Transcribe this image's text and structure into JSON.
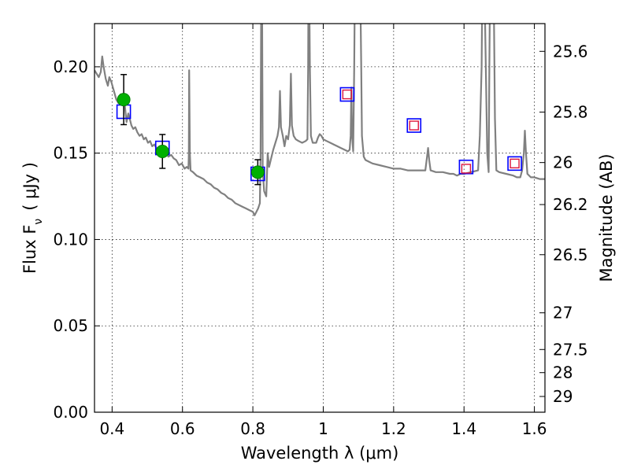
{
  "chart_data": {
    "type": "scatter",
    "xlabel": "Wavelength  λ (μm)",
    "ylabel": "Flux  F",
    "ylabel_sub": "ν",
    "ylabel_unit": "( μJy )",
    "y2label": "Magnitude (AB)",
    "xlim": [
      0.35,
      1.63
    ],
    "ylim": [
      0.0,
      0.225
    ],
    "grid": true,
    "x_ticks": [
      {
        "v": 0.4,
        "label": "0.4"
      },
      {
        "v": 0.6,
        "label": "0.6"
      },
      {
        "v": 0.8,
        "label": "0.8"
      },
      {
        "v": 1.0,
        "label": "1"
      },
      {
        "v": 1.2,
        "label": "1.2"
      },
      {
        "v": 1.4,
        "label": "1.4"
      },
      {
        "v": 1.6,
        "label": "1.6"
      }
    ],
    "y_ticks": [
      {
        "v": 0.0,
        "label": "0.00"
      },
      {
        "v": 0.05,
        "label": "0.05"
      },
      {
        "v": 0.1,
        "label": "0.10"
      },
      {
        "v": 0.15,
        "label": "0.15"
      },
      {
        "v": 0.2,
        "label": "0.20"
      }
    ],
    "mag_ticks": [
      {
        "v": 25.6,
        "label": "25.6"
      },
      {
        "v": 25.8,
        "label": "25.8"
      },
      {
        "v": 26,
        "label": "26"
      },
      {
        "v": 26.2,
        "label": "26.2"
      },
      {
        "v": 26.5,
        "label": "26.5"
      },
      {
        "v": 27,
        "label": "27"
      },
      {
        "v": 27.5,
        "label": "27.5"
      },
      {
        "v": 28,
        "label": "28"
      },
      {
        "v": 29,
        "label": "29"
      }
    ],
    "model_spectrum": {
      "color": "#808080",
      "points": [
        [
          0.35,
          0.198
        ],
        [
          0.356,
          0.196
        ],
        [
          0.362,
          0.194
        ],
        [
          0.368,
          0.197
        ],
        [
          0.372,
          0.206
        ],
        [
          0.376,
          0.2
        ],
        [
          0.382,
          0.193
        ],
        [
          0.388,
          0.189
        ],
        [
          0.392,
          0.194
        ],
        [
          0.398,
          0.191
        ],
        [
          0.405,
          0.186
        ],
        [
          0.412,
          0.181
        ],
        [
          0.418,
          0.179
        ],
        [
          0.424,
          0.184
        ],
        [
          0.428,
          0.18
        ],
        [
          0.432,
          0.183
        ],
        [
          0.436,
          0.178
        ],
        [
          0.441,
          0.168
        ],
        [
          0.446,
          0.173
        ],
        [
          0.45,
          0.17
        ],
        [
          0.455,
          0.166
        ],
        [
          0.46,
          0.164
        ],
        [
          0.466,
          0.165
        ],
        [
          0.472,
          0.162
        ],
        [
          0.478,
          0.16
        ],
        [
          0.484,
          0.161
        ],
        [
          0.49,
          0.158
        ],
        [
          0.496,
          0.159
        ],
        [
          0.502,
          0.156
        ],
        [
          0.508,
          0.157
        ],
        [
          0.514,
          0.154
        ],
        [
          0.52,
          0.155
        ],
        [
          0.526,
          0.153
        ],
        [
          0.532,
          0.151
        ],
        [
          0.538,
          0.152
        ],
        [
          0.545,
          0.15
        ],
        [
          0.552,
          0.151
        ],
        [
          0.56,
          0.148
        ],
        [
          0.568,
          0.149
        ],
        [
          0.575,
          0.147
        ],
        [
          0.582,
          0.146
        ],
        [
          0.59,
          0.143
        ],
        [
          0.598,
          0.144
        ],
        [
          0.606,
          0.141
        ],
        [
          0.612,
          0.142
        ],
        [
          0.617,
          0.141
        ],
        [
          0.618,
          0.15
        ],
        [
          0.619,
          0.198
        ],
        [
          0.621,
          0.15
        ],
        [
          0.623,
          0.14
        ],
        [
          0.63,
          0.139
        ],
        [
          0.64,
          0.137
        ],
        [
          0.65,
          0.136
        ],
        [
          0.66,
          0.135
        ],
        [
          0.67,
          0.133
        ],
        [
          0.68,
          0.132
        ],
        [
          0.69,
          0.13
        ],
        [
          0.7,
          0.129
        ],
        [
          0.71,
          0.127
        ],
        [
          0.72,
          0.126
        ],
        [
          0.73,
          0.124
        ],
        [
          0.74,
          0.123
        ],
        [
          0.75,
          0.121
        ],
        [
          0.76,
          0.12
        ],
        [
          0.77,
          0.119
        ],
        [
          0.78,
          0.118
        ],
        [
          0.79,
          0.117
        ],
        [
          0.8,
          0.116
        ],
        [
          0.805,
          0.114
        ],
        [
          0.81,
          0.116
        ],
        [
          0.815,
          0.118
        ],
        [
          0.82,
          0.121
        ],
        [
          0.822,
          0.15
        ],
        [
          0.824,
          0.25
        ],
        [
          0.826,
          0.25
        ],
        [
          0.828,
          0.14
        ],
        [
          0.832,
          0.128
        ],
        [
          0.838,
          0.125
        ],
        [
          0.842,
          0.15
        ],
        [
          0.846,
          0.142
        ],
        [
          0.852,
          0.147
        ],
        [
          0.858,
          0.152
        ],
        [
          0.864,
          0.156
        ],
        [
          0.87,
          0.16
        ],
        [
          0.874,
          0.165
        ],
        [
          0.877,
          0.186
        ],
        [
          0.88,
          0.165
        ],
        [
          0.885,
          0.16
        ],
        [
          0.89,
          0.154
        ],
        [
          0.895,
          0.16
        ],
        [
          0.9,
          0.158
        ],
        [
          0.905,
          0.166
        ],
        [
          0.908,
          0.196
        ],
        [
          0.911,
          0.166
        ],
        [
          0.916,
          0.16
        ],
        [
          0.922,
          0.158
        ],
        [
          0.93,
          0.157
        ],
        [
          0.94,
          0.156
        ],
        [
          0.95,
          0.157
        ],
        [
          0.955,
          0.158
        ],
        [
          0.957,
          0.2
        ],
        [
          0.958,
          0.25
        ],
        [
          0.96,
          0.25
        ],
        [
          0.962,
          0.2
        ],
        [
          0.965,
          0.16
        ],
        [
          0.97,
          0.156
        ],
        [
          0.98,
          0.156
        ],
        [
          0.985,
          0.159
        ],
        [
          0.99,
          0.161
        ],
        [
          0.995,
          0.16
        ],
        [
          1.0,
          0.158
        ],
        [
          1.01,
          0.157
        ],
        [
          1.02,
          0.156
        ],
        [
          1.03,
          0.155
        ],
        [
          1.04,
          0.154
        ],
        [
          1.05,
          0.153
        ],
        [
          1.06,
          0.152
        ],
        [
          1.07,
          0.151
        ],
        [
          1.075,
          0.152
        ],
        [
          1.078,
          0.16
        ],
        [
          1.08,
          0.188
        ],
        [
          1.082,
          0.16
        ],
        [
          1.085,
          0.151
        ],
        [
          1.088,
          0.2
        ],
        [
          1.09,
          0.25
        ],
        [
          1.105,
          0.25
        ],
        [
          1.108,
          0.2
        ],
        [
          1.11,
          0.16
        ],
        [
          1.115,
          0.148
        ],
        [
          1.12,
          0.146
        ],
        [
          1.13,
          0.145
        ],
        [
          1.14,
          0.144
        ],
        [
          1.16,
          0.143
        ],
        [
          1.18,
          0.142
        ],
        [
          1.2,
          0.141
        ],
        [
          1.22,
          0.141
        ],
        [
          1.24,
          0.14
        ],
        [
          1.26,
          0.14
        ],
        [
          1.28,
          0.14
        ],
        [
          1.29,
          0.14
        ],
        [
          1.295,
          0.148
        ],
        [
          1.298,
          0.153
        ],
        [
          1.301,
          0.146
        ],
        [
          1.305,
          0.14
        ],
        [
          1.32,
          0.139
        ],
        [
          1.34,
          0.139
        ],
        [
          1.36,
          0.138
        ],
        [
          1.37,
          0.138
        ],
        [
          1.38,
          0.137
        ],
        [
          1.39,
          0.138
        ],
        [
          1.4,
          0.138
        ],
        [
          1.42,
          0.139
        ],
        [
          1.44,
          0.14
        ],
        [
          1.445,
          0.16
        ],
        [
          1.45,
          0.2
        ],
        [
          1.452,
          0.25
        ],
        [
          1.458,
          0.25
        ],
        [
          1.462,
          0.2
        ],
        [
          1.466,
          0.15
        ],
        [
          1.47,
          0.139
        ],
        [
          1.472,
          0.2
        ],
        [
          1.474,
          0.25
        ],
        [
          1.484,
          0.25
        ],
        [
          1.488,
          0.17
        ],
        [
          1.492,
          0.14
        ],
        [
          1.5,
          0.139
        ],
        [
          1.52,
          0.138
        ],
        [
          1.54,
          0.137
        ],
        [
          1.55,
          0.136
        ],
        [
          1.56,
          0.136
        ],
        [
          1.565,
          0.14
        ],
        [
          1.57,
          0.15
        ],
        [
          1.573,
          0.163
        ],
        [
          1.576,
          0.15
        ],
        [
          1.58,
          0.138
        ],
        [
          1.59,
          0.136
        ],
        [
          1.6,
          0.136
        ],
        [
          1.615,
          0.135
        ],
        [
          1.63,
          0.135
        ]
      ]
    },
    "model_photometry": {
      "color": "#0000ff",
      "points": [
        {
          "x": 0.433,
          "y": 0.174
        },
        {
          "x": 0.543,
          "y": 0.153
        },
        {
          "x": 0.814,
          "y": 0.138
        },
        {
          "x": 1.068,
          "y": 0.184
        },
        {
          "x": 1.258,
          "y": 0.166
        },
        {
          "x": 1.406,
          "y": 0.142
        },
        {
          "x": 1.544,
          "y": 0.144
        }
      ]
    },
    "upper_limits": {
      "color": "#dc143c",
      "points": [
        {
          "x": 1.068,
          "y": 0.184
        },
        {
          "x": 1.258,
          "y": 0.166
        },
        {
          "x": 1.406,
          "y": 0.141
        },
        {
          "x": 1.544,
          "y": 0.144
        }
      ]
    },
    "observed": {
      "color": "#00b000",
      "points": [
        {
          "x": 0.433,
          "y": 0.181,
          "err": 0.0145
        },
        {
          "x": 0.543,
          "y": 0.151,
          "err": 0.0098
        },
        {
          "x": 0.814,
          "y": 0.139,
          "err": 0.0072
        }
      ]
    }
  }
}
